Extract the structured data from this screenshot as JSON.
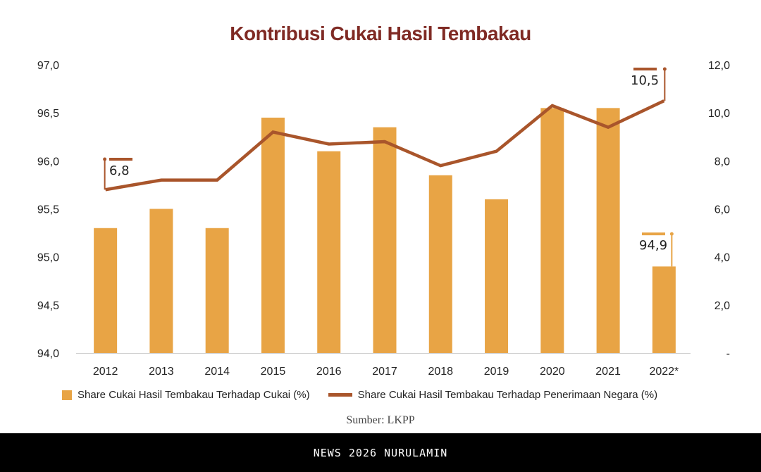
{
  "header": {
    "title": "Kontribusi Cukai Hasil Tembakau"
  },
  "source": "Sumber: LKPP",
  "footer": {
    "watermark": "NEWS 2026 NURULAMIN"
  },
  "colors": {
    "bar": "#e8a445",
    "line": "#a9552b",
    "title": "#7f2a24"
  },
  "callouts": {
    "first_line": "6,8",
    "last_line": "10,5",
    "last_bar": "94,9"
  },
  "legend": {
    "bar_label": "Share Cukai Hasil Tembakau Terhadap Cukai (%)",
    "line_label": "Share Cukai Hasil Tembakau Terhadap Penerimaan Negara (%)"
  },
  "chart_data": {
    "type": "bar",
    "title": "Kontribusi Cukai Hasil Tembakau",
    "categories": [
      "2012",
      "2013",
      "2014",
      "2015",
      "2016",
      "2017",
      "2018",
      "2019",
      "2020",
      "2021",
      "2022*"
    ],
    "series": [
      {
        "name": "Share Cukai Hasil Tembakau Terhadap Cukai (%)",
        "type": "bar",
        "axis": "left",
        "values": [
          95.3,
          95.5,
          95.3,
          96.45,
          96.1,
          96.35,
          95.85,
          95.6,
          96.55,
          96.55,
          94.9
        ]
      },
      {
        "name": "Share Cukai Hasil Tembakau Terhadap Penerimaan Negara (%)",
        "type": "line",
        "axis": "right",
        "values": [
          6.8,
          7.2,
          7.2,
          9.2,
          8.7,
          8.8,
          7.8,
          8.4,
          10.3,
          9.4,
          10.5
        ]
      }
    ],
    "left_axis": {
      "ylim": [
        94.0,
        97.0
      ],
      "ticks": [
        "94,0",
        "94,5",
        "95,0",
        "95,5",
        "96,0",
        "96,5",
        "97,0"
      ]
    },
    "right_axis": {
      "ylim": [
        0,
        12.0
      ],
      "ticks": [
        "-",
        "2,0",
        "4,0",
        "6,0",
        "8,0",
        "10,0",
        "12,0"
      ]
    },
    "annotations": [
      "6,8",
      "10,5",
      "94,9"
    ],
    "xlabel": "",
    "ylabel": "",
    "grid": false,
    "legend_position": "bottom",
    "source": "Sumber: LKPP"
  }
}
